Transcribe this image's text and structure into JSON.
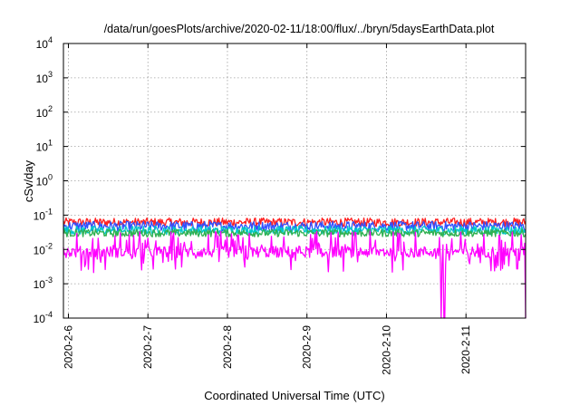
{
  "chart_data": {
    "type": "line",
    "title": "/data/run/goesPlots/archive/2020-02-11/18:00/flux/../bryn/5daysEarthData.plot",
    "xlabel": "Coordinated Universal Time (UTC)",
    "ylabel": "cSv/day",
    "yscale": "log",
    "ylim": [
      0.0001,
      10000
    ],
    "y_ticks": [
      {
        "value": 0.0001,
        "base": "10",
        "exp": "-4"
      },
      {
        "value": 0.001,
        "base": "10",
        "exp": "-3"
      },
      {
        "value": 0.01,
        "base": "10",
        "exp": "-2"
      },
      {
        "value": 0.1,
        "base": "10",
        "exp": "-1"
      },
      {
        "value": 1,
        "base": "10",
        "exp": "0"
      },
      {
        "value": 10,
        "base": "10",
        "exp": "1"
      },
      {
        "value": 100,
        "base": "10",
        "exp": "2"
      },
      {
        "value": 1000,
        "base": "10",
        "exp": "3"
      },
      {
        "value": 10000,
        "base": "10",
        "exp": "4"
      }
    ],
    "xlim": [
      "2020-02-05T22:30",
      "2020-02-11T18:00"
    ],
    "x_ticks": [
      {
        "value": "2020-02-06T00:00",
        "label": "2020-2-6"
      },
      {
        "value": "2020-02-07T00:00",
        "label": "2020-2-7"
      },
      {
        "value": "2020-02-08T00:00",
        "label": "2020-2-8"
      },
      {
        "value": "2020-02-09T00:00",
        "label": "2020-2-9"
      },
      {
        "value": "2020-02-10T00:00",
        "label": "2020-2-10"
      },
      {
        "value": "2020-02-11T00:00",
        "label": "2020-2-11"
      }
    ],
    "grid": true,
    "series": [
      {
        "color": "#ff2020",
        "base": 0.062,
        "spread": 0.25
      },
      {
        "color": "#3050ff",
        "base": 0.048,
        "spread": 0.28
      },
      {
        "color": "#00c8c8",
        "base": 0.036,
        "spread": 0.25
      },
      {
        "color": "#30b050",
        "base": 0.03,
        "spread": 0.22
      },
      {
        "color": "#ff00ff",
        "base": 0.0085,
        "spread": 0.55
      }
    ],
    "notable_drops": [
      {
        "time": "2020-02-10T16:30",
        "value": 0.0001
      },
      {
        "time": "2020-02-10T17:30",
        "value": 0.0001
      },
      {
        "time": "2020-02-11T18:00",
        "value": 0.0001
      }
    ]
  }
}
